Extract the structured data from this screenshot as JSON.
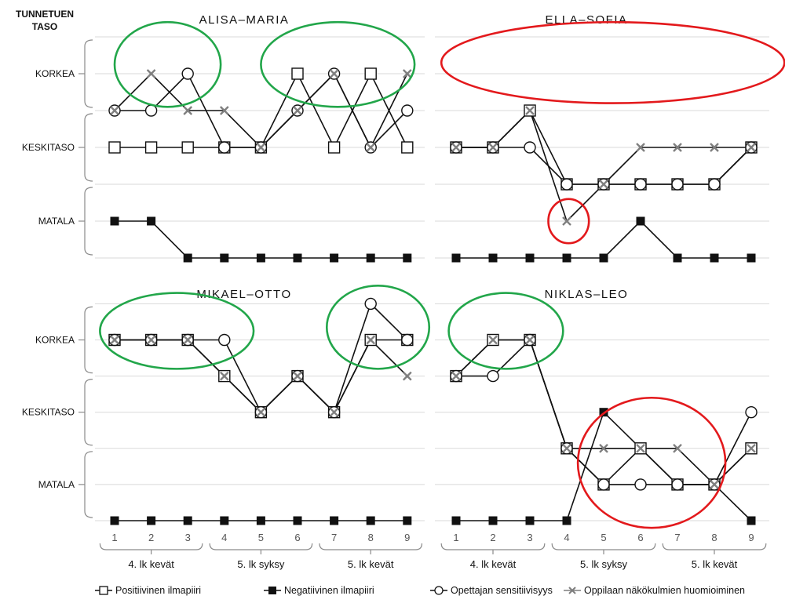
{
  "y_axis_title": [
    "TUNNETUEN",
    "TASO"
  ],
  "level_labels": [
    "KORKEA",
    "KESKITASO",
    "MATALA"
  ],
  "period_labels": [
    "4. lk kevät",
    "5. lk syksy",
    "5. lk kevät"
  ],
  "x_ticks": [
    "1",
    "2",
    "3",
    "4",
    "5",
    "6",
    "7",
    "8",
    "9"
  ],
  "colors": {
    "ellipse_good": "#22a64a",
    "ellipse_bad": "#e3191c",
    "line": "#111111",
    "grid": "#d9d9d9",
    "cross": "#7f7f7f"
  },
  "chart_data": {
    "type": "line",
    "note": "y values on 0–6 scale: 0–2 MATALA, 2–4 KESKITASO, 4–6 KORKEA",
    "legend": [
      {
        "name": "Positiivinen ilmapiiri",
        "marker": "open-square"
      },
      {
        "name": "Negatiivinen ilmapiiri",
        "marker": "filled-square"
      },
      {
        "name": "Opettajan sensitiivisyys",
        "marker": "open-circle"
      },
      {
        "name": "Oppilaan näkökulmien huomioiminen",
        "marker": "cross"
      }
    ],
    "panels": [
      {
        "title": "ALISA–MARIA",
        "x": [
          1,
          2,
          3,
          4,
          5,
          6,
          7,
          8,
          9
        ],
        "series": [
          {
            "name": "Positiivinen ilmapiiri",
            "values": [
              3,
              3,
              3,
              3,
              3,
              5,
              3,
              5,
              3
            ]
          },
          {
            "name": "Negatiivinen ilmapiiri",
            "values": [
              1,
              1,
              0,
              0,
              0,
              0,
              0,
              0,
              0
            ]
          },
          {
            "name": "Opettajan sensitiivisyys",
            "values": [
              4,
              4,
              5,
              3,
              3,
              4,
              5,
              3,
              4
            ]
          },
          {
            "name": "Oppilaan näkökulmien huomioiminen",
            "values": [
              4,
              5,
              4,
              4,
              3,
              4,
              5,
              3,
              5
            ]
          }
        ],
        "ellipses": [
          {
            "color": "good",
            "x_range": [
              1,
              3.9
            ],
            "y_range": [
              4.1,
              6.4
            ]
          },
          {
            "color": "good",
            "x_range": [
              5,
              9.2
            ],
            "y_range": [
              4.1,
              6.4
            ]
          }
        ]
      },
      {
        "title": "ELLA–SOFIA",
        "x": [
          1,
          2,
          3,
          4,
          5,
          6,
          7,
          8,
          9
        ],
        "series": [
          {
            "name": "Positiivinen ilmapiiri",
            "values": [
              3,
              3,
              4,
              2,
              2,
              2,
              2,
              2,
              3
            ]
          },
          {
            "name": "Negatiivinen ilmapiiri",
            "values": [
              0,
              0,
              0,
              0,
              0,
              1,
              0,
              0,
              0
            ]
          },
          {
            "name": "Opettajan sensitiivisyys",
            "values": [
              3,
              3,
              3,
              2,
              2,
              2,
              2,
              2,
              3
            ]
          },
          {
            "name": "Oppilaan näkökulmien huomioiminen",
            "values": [
              3,
              3,
              4,
              1,
              2,
              3,
              3,
              3,
              3
            ]
          }
        ],
        "ellipses": [
          {
            "color": "bad",
            "x_range": [
              0.6,
              9.9
            ],
            "y_range": [
              4.2,
              6.4
            ]
          },
          {
            "color": "bad",
            "x_range": [
              3.5,
              4.6
            ],
            "y_range": [
              0.4,
              1.6
            ]
          }
        ]
      },
      {
        "title": "MIKAEL–OTTO",
        "x": [
          1,
          2,
          3,
          4,
          5,
          6,
          7,
          8,
          9
        ],
        "series": [
          {
            "name": "Positiivinen ilmapiiri",
            "values": [
              5,
              5,
              5,
              4,
              3,
              4,
              3,
              5,
              5
            ]
          },
          {
            "name": "Negatiivinen ilmapiiri",
            "values": [
              0,
              0,
              0,
              0,
              0,
              0,
              0,
              0,
              0
            ]
          },
          {
            "name": "Opettajan sensitiivisyys",
            "values": [
              5,
              5,
              5,
              5,
              3,
              4,
              3,
              6,
              5
            ]
          },
          {
            "name": "Oppilaan näkökulmien huomioiminen",
            "values": [
              5,
              5,
              5,
              4,
              3,
              4,
              3,
              5,
              4
            ]
          }
        ],
        "ellipses": [
          {
            "color": "good",
            "x_range": [
              0.6,
              4.8
            ],
            "y_range": [
              4.2,
              6.3
            ]
          },
          {
            "color": "good",
            "x_range": [
              6.8,
              9.6
            ],
            "y_range": [
              4.2,
              6.5
            ]
          }
        ]
      },
      {
        "title": "NIKLAS–LEO",
        "x": [
          1,
          2,
          3,
          4,
          5,
          6,
          7,
          8,
          9
        ],
        "series": [
          {
            "name": "Positiivinen ilmapiiri",
            "values": [
              4,
              5,
              5,
              2,
              1,
              2,
              1,
              1,
              2
            ]
          },
          {
            "name": "Negatiivinen ilmapiiri",
            "values": [
              0,
              0,
              0,
              0,
              3,
              2,
              1,
              1,
              0
            ]
          },
          {
            "name": "Opettajan sensitiivisyys",
            "values": [
              4,
              4,
              5,
              2,
              1,
              1,
              1,
              1,
              3
            ]
          },
          {
            "name": "Oppilaan näkökulmien huomioiminen",
            "values": [
              4,
              5,
              5,
              2,
              2,
              2,
              2,
              1,
              2
            ]
          }
        ],
        "ellipses": [
          {
            "color": "good",
            "x_range": [
              0.8,
              3.9
            ],
            "y_range": [
              4.2,
              6.3
            ]
          },
          {
            "color": "bad",
            "x_range": [
              4.3,
              8.3
            ],
            "y_range": [
              -0.2,
              3.4
            ]
          }
        ]
      }
    ]
  }
}
